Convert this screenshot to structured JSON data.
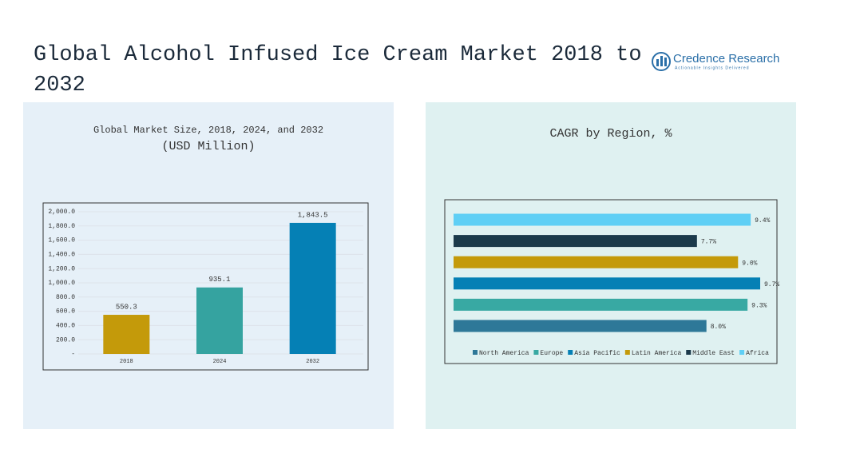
{
  "header": {
    "title": "Global Alcohol Infused Ice Cream Market 2018 to 2032",
    "logo": "Credence Research",
    "tagline": "Actionable Insights Delivered"
  },
  "chart_data": [
    {
      "type": "bar",
      "title": "Global Market Size, 2018, 2024, and 2032",
      "subtitle": "(USD Million)",
      "categories": [
        "2018",
        "2024",
        "2032"
      ],
      "values": [
        550.3,
        935.1,
        1843.5
      ],
      "value_labels": [
        "550.3",
        "935.1",
        "1,843.5"
      ],
      "colors": [
        "#c49a0a",
        "#35a3a0",
        "#0580b5"
      ],
      "ylim": [
        0,
        2000
      ],
      "yticks": [
        {
          "value": 0,
          "label": "-"
        },
        {
          "value": 200,
          "label": "200.0"
        },
        {
          "value": 400,
          "label": "400.0"
        },
        {
          "value": 600,
          "label": "600.0"
        },
        {
          "value": 800,
          "label": "800.0"
        },
        {
          "value": 1000,
          "label": "1,000.0"
        },
        {
          "value": 1200,
          "label": "1,200.0"
        },
        {
          "value": 1400,
          "label": "1,400.0"
        },
        {
          "value": 1600,
          "label": "1,600.0"
        },
        {
          "value": 1800,
          "label": "1,800.0"
        },
        {
          "value": 2000,
          "label": "2,000.0"
        }
      ],
      "grid": true
    },
    {
      "type": "barh",
      "title": "CAGR by Region, %",
      "legend": "bottom",
      "series": [
        {
          "name": "North America",
          "color": "#2e7898",
          "values": [
            8.0
          ],
          "value_labels": [
            "8.0%"
          ]
        },
        {
          "name": "Europe",
          "color": "#38a9a3",
          "values": [
            9.3
          ],
          "value_labels": [
            "9.3%"
          ]
        },
        {
          "name": "Asia Pacific",
          "color": "#0580b5",
          "values": [
            9.7
          ],
          "value_labels": [
            "9.7%"
          ]
        },
        {
          "name": "Latin America",
          "color": "#c49a0a",
          "values": [
            9.0
          ],
          "value_labels": [
            "9.0%"
          ]
        },
        {
          "name": "Middle East",
          "color": "#1b3a4b",
          "values": [
            7.7
          ],
          "value_labels": [
            "7.7%"
          ]
        },
        {
          "name": "Africa",
          "color": "#5fcff5",
          "values": [
            9.4
          ],
          "value_labels": [
            "9.4%"
          ]
        }
      ]
    }
  ]
}
